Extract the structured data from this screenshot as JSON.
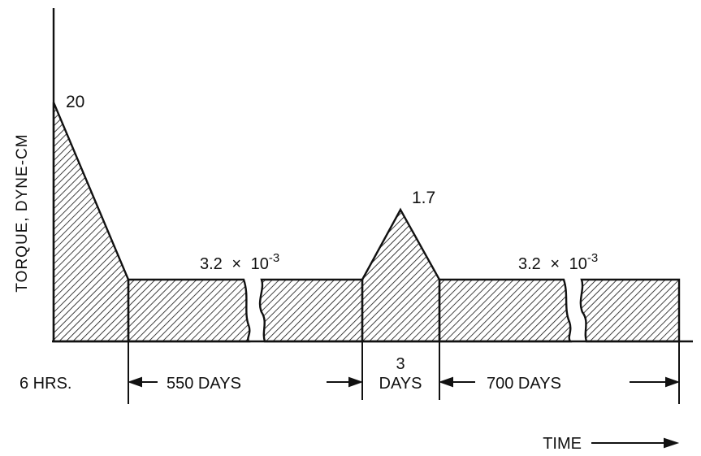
{
  "y_axis_label": "TORQUE, DYNE-CM",
  "x_axis_label": "TIME",
  "peak_labels": {
    "initial": "20",
    "mid": "1.7"
  },
  "plateau_labels": {
    "first": {
      "mantissa": "3.2",
      "times": "×",
      "base": "10",
      "exponent": "-3"
    },
    "second": {
      "mantissa": "3.2",
      "times": "×",
      "base": "10",
      "exponent": "-3"
    }
  },
  "intervals": [
    {
      "label": "6 HRS."
    },
    {
      "label": "550 DAYS"
    },
    {
      "label_line1": "3",
      "label_line2": "DAYS"
    },
    {
      "label": "700 DAYS"
    }
  ],
  "colors": {
    "ink": "#111111",
    "background": "#ffffff"
  }
}
